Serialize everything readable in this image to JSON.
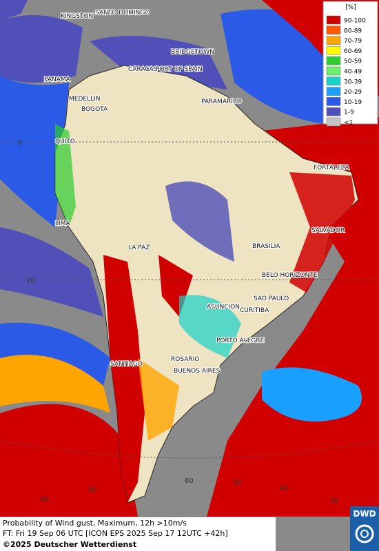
{
  "legend": {
    "title": "[%]",
    "entries": [
      {
        "label": "90-100",
        "color": "#d10000"
      },
      {
        "label": "80-89",
        "color": "#ff5a00"
      },
      {
        "label": "70-79",
        "color": "#ffa500"
      },
      {
        "label": "60-69",
        "color": "#ffff00"
      },
      {
        "label": "50-59",
        "color": "#2ecc2e"
      },
      {
        "label": "40-49",
        "color": "#6cf06c"
      },
      {
        "label": "30-39",
        "color": "#19d2c8"
      },
      {
        "label": "20-29",
        "color": "#19a0ff"
      },
      {
        "label": "10-19",
        "color": "#2a5ae6"
      },
      {
        "label": "1-9",
        "color": "#5050b8"
      },
      {
        "label": "<1",
        "color": "#c4c4c4"
      }
    ]
  },
  "cities": [
    "KINGSTON",
    "SANTO DOMINGO",
    "BRIDGETOWN",
    "CARACAS",
    "PORT OF SPAIN",
    "PANAMA",
    "MEDELLIN",
    "BOGOTA",
    "PARAMARIBO",
    "QUITO",
    "FORTALEZA",
    "LIMA",
    "SALVADOR",
    "BRASILIA",
    "LA PAZ",
    "BELO HORIZONTE",
    "SAO PAULO",
    "ASUNCION",
    "CURITIBA",
    "PORTO ALEGRE",
    "SANTIAGO",
    "ROSARIO",
    "BUENOS AIRES"
  ],
  "grid_labels": [
    "0",
    "20",
    "90",
    "80",
    "60",
    "50",
    "40",
    "30"
  ],
  "caption": {
    "line1": "Probability of Wind gust, Maximum, 12h >10m/s",
    "line2": "FT: Fri 19 Sep 06 UTC [ICON EPS 2025 Sep 17 12UTC +42h]",
    "line3": "©2025 Deutscher Wetterdienst"
  },
  "logo": "DWD"
}
